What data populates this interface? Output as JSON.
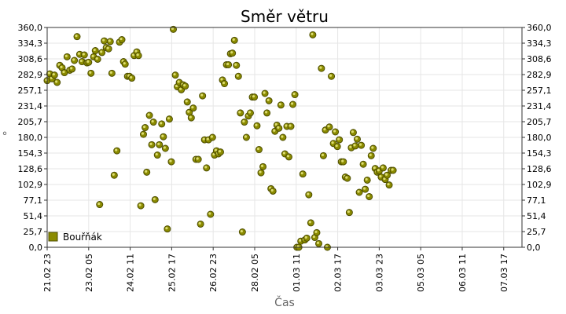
{
  "chart_data": {
    "type": "scatter",
    "title": "Směr větru",
    "xlabel": "Čas",
    "ylabel": "°",
    "ylim": [
      0,
      360
    ],
    "yticks": [
      "0,0",
      "25,7",
      "51,4",
      "77,1",
      "102,9",
      "128,6",
      "154,3",
      "180,0",
      "205,7",
      "231,4",
      "257,1",
      "282,9",
      "308,6",
      "334,3",
      "360,0"
    ],
    "xlim": [
      0,
      14.3
    ],
    "xticks": [
      {
        "x": 0,
        "label": "21.02 23"
      },
      {
        "x": 1.25,
        "label": "23.02 05"
      },
      {
        "x": 2.5,
        "label": "24.02 11"
      },
      {
        "x": 3.75,
        "label": "25.02 17"
      },
      {
        "x": 5.0,
        "label": "26.02 23"
      },
      {
        "x": 6.25,
        "label": "28.02 05"
      },
      {
        "x": 7.5,
        "label": "01.03 11"
      },
      {
        "x": 8.75,
        "label": "02.03 17"
      },
      {
        "x": 10.0,
        "label": "03.03 23"
      },
      {
        "x": 11.25,
        "label": "05.03 05"
      },
      {
        "x": 12.5,
        "label": "06.03 11"
      },
      {
        "x": 13.75,
        "label": "07.03 17"
      }
    ],
    "legend": {
      "position": "bottom-left",
      "entries": [
        "Bouřňák"
      ]
    },
    "grid": true,
    "series": [
      {
        "name": "Bouřňák",
        "color": "#8b8b00",
        "points": [
          [
            0.0,
            273
          ],
          [
            0.08,
            284
          ],
          [
            0.15,
            276
          ],
          [
            0.22,
            282
          ],
          [
            0.3,
            270
          ],
          [
            0.38,
            298
          ],
          [
            0.45,
            294
          ],
          [
            0.52,
            286
          ],
          [
            0.6,
            312
          ],
          [
            0.68,
            290
          ],
          [
            0.75,
            292
          ],
          [
            0.82,
            306
          ],
          [
            0.9,
            345
          ],
          [
            0.98,
            316
          ],
          [
            1.05,
            304
          ],
          [
            1.12,
            315
          ],
          [
            1.2,
            302
          ],
          [
            1.25,
            303
          ],
          [
            1.32,
            285
          ],
          [
            1.4,
            312
          ],
          [
            1.45,
            322
          ],
          [
            1.52,
            308
          ],
          [
            1.58,
            70
          ],
          [
            1.65,
            319
          ],
          [
            1.72,
            338
          ],
          [
            1.78,
            327
          ],
          [
            1.85,
            325
          ],
          [
            1.9,
            337
          ],
          [
            1.95,
            285
          ],
          [
            2.02,
            118
          ],
          [
            2.1,
            158
          ],
          [
            2.18,
            336
          ],
          [
            2.25,
            340
          ],
          [
            2.3,
            304
          ],
          [
            2.35,
            300
          ],
          [
            2.42,
            280
          ],
          [
            2.48,
            280
          ],
          [
            2.55,
            277
          ],
          [
            2.62,
            314
          ],
          [
            2.7,
            320
          ],
          [
            2.75,
            314
          ],
          [
            2.82,
            68
          ],
          [
            2.9,
            185
          ],
          [
            2.95,
            196
          ],
          [
            3.0,
            123
          ],
          [
            3.08,
            216
          ],
          [
            3.15,
            168
          ],
          [
            3.2,
            205
          ],
          [
            3.25,
            78
          ],
          [
            3.32,
            151
          ],
          [
            3.38,
            168
          ],
          [
            3.45,
            202
          ],
          [
            3.5,
            181
          ],
          [
            3.56,
            162
          ],
          [
            3.62,
            30
          ],
          [
            3.68,
            210
          ],
          [
            3.74,
            140
          ],
          [
            3.8,
            357
          ],
          [
            3.86,
            282
          ],
          [
            3.92,
            263
          ],
          [
            3.98,
            270
          ],
          [
            4.04,
            258
          ],
          [
            4.1,
            266
          ],
          [
            4.16,
            264
          ],
          [
            4.22,
            238
          ],
          [
            4.28,
            221
          ],
          [
            4.34,
            212
          ],
          [
            4.4,
            228
          ],
          [
            4.48,
            144
          ],
          [
            4.55,
            144
          ],
          [
            4.62,
            38
          ],
          [
            4.68,
            248
          ],
          [
            4.74,
            176
          ],
          [
            4.8,
            130
          ],
          [
            4.86,
            176
          ],
          [
            4.92,
            54
          ],
          [
            4.98,
            180
          ],
          [
            5.04,
            151
          ],
          [
            5.1,
            158
          ],
          [
            5.16,
            153
          ],
          [
            5.22,
            156
          ],
          [
            5.28,
            274
          ],
          [
            5.34,
            268
          ],
          [
            5.4,
            299
          ],
          [
            5.46,
            299
          ],
          [
            5.52,
            317
          ],
          [
            5.58,
            318
          ],
          [
            5.64,
            339
          ],
          [
            5.7,
            298
          ],
          [
            5.76,
            280
          ],
          [
            5.82,
            220
          ],
          [
            5.88,
            25
          ],
          [
            5.94,
            205
          ],
          [
            6.0,
            180
          ],
          [
            6.06,
            215
          ],
          [
            6.12,
            220
          ],
          [
            6.18,
            246
          ],
          [
            6.24,
            246
          ],
          [
            6.32,
            199
          ],
          [
            6.38,
            160
          ],
          [
            6.44,
            122
          ],
          [
            6.5,
            132
          ],
          [
            6.56,
            252
          ],
          [
            6.62,
            220
          ],
          [
            6.68,
            240
          ],
          [
            6.74,
            96
          ],
          [
            6.8,
            92
          ],
          [
            6.86,
            190
          ],
          [
            6.92,
            200
          ],
          [
            6.98,
            195
          ],
          [
            7.04,
            233
          ],
          [
            7.1,
            180
          ],
          [
            7.16,
            153
          ],
          [
            7.22,
            198
          ],
          [
            7.28,
            148
          ],
          [
            7.34,
            198
          ],
          [
            7.4,
            234
          ],
          [
            7.46,
            250
          ],
          [
            7.52,
            0
          ],
          [
            7.58,
            0
          ],
          [
            7.64,
            10
          ],
          [
            7.7,
            120
          ],
          [
            7.76,
            12
          ],
          [
            7.82,
            15
          ],
          [
            7.88,
            86
          ],
          [
            7.94,
            40
          ],
          [
            8.0,
            348
          ],
          [
            8.06,
            16
          ],
          [
            8.12,
            24
          ],
          [
            8.18,
            6
          ],
          [
            8.26,
            293
          ],
          [
            8.32,
            150
          ],
          [
            8.38,
            192
          ],
          [
            8.44,
            0
          ],
          [
            8.5,
            197
          ],
          [
            8.56,
            280
          ],
          [
            8.62,
            170
          ],
          [
            8.68,
            189
          ],
          [
            8.74,
            165
          ],
          [
            8.8,
            176
          ],
          [
            8.86,
            140
          ],
          [
            8.92,
            140
          ],
          [
            8.98,
            115
          ],
          [
            9.04,
            113
          ],
          [
            9.1,
            57
          ],
          [
            9.16,
            163
          ],
          [
            9.22,
            188
          ],
          [
            9.28,
            166
          ],
          [
            9.34,
            177
          ],
          [
            9.4,
            90
          ],
          [
            9.46,
            167
          ],
          [
            9.52,
            136
          ],
          [
            9.58,
            95
          ],
          [
            9.64,
            110
          ],
          [
            9.7,
            83
          ],
          [
            9.76,
            150
          ],
          [
            9.82,
            162
          ],
          [
            9.88,
            129
          ],
          [
            9.94,
            123
          ],
          [
            10.0,
            125
          ],
          [
            10.06,
            115
          ],
          [
            10.12,
            130
          ],
          [
            10.18,
            111
          ],
          [
            10.24,
            118
          ],
          [
            10.3,
            102
          ],
          [
            10.36,
            126
          ],
          [
            10.42,
            126
          ]
        ]
      }
    ]
  }
}
